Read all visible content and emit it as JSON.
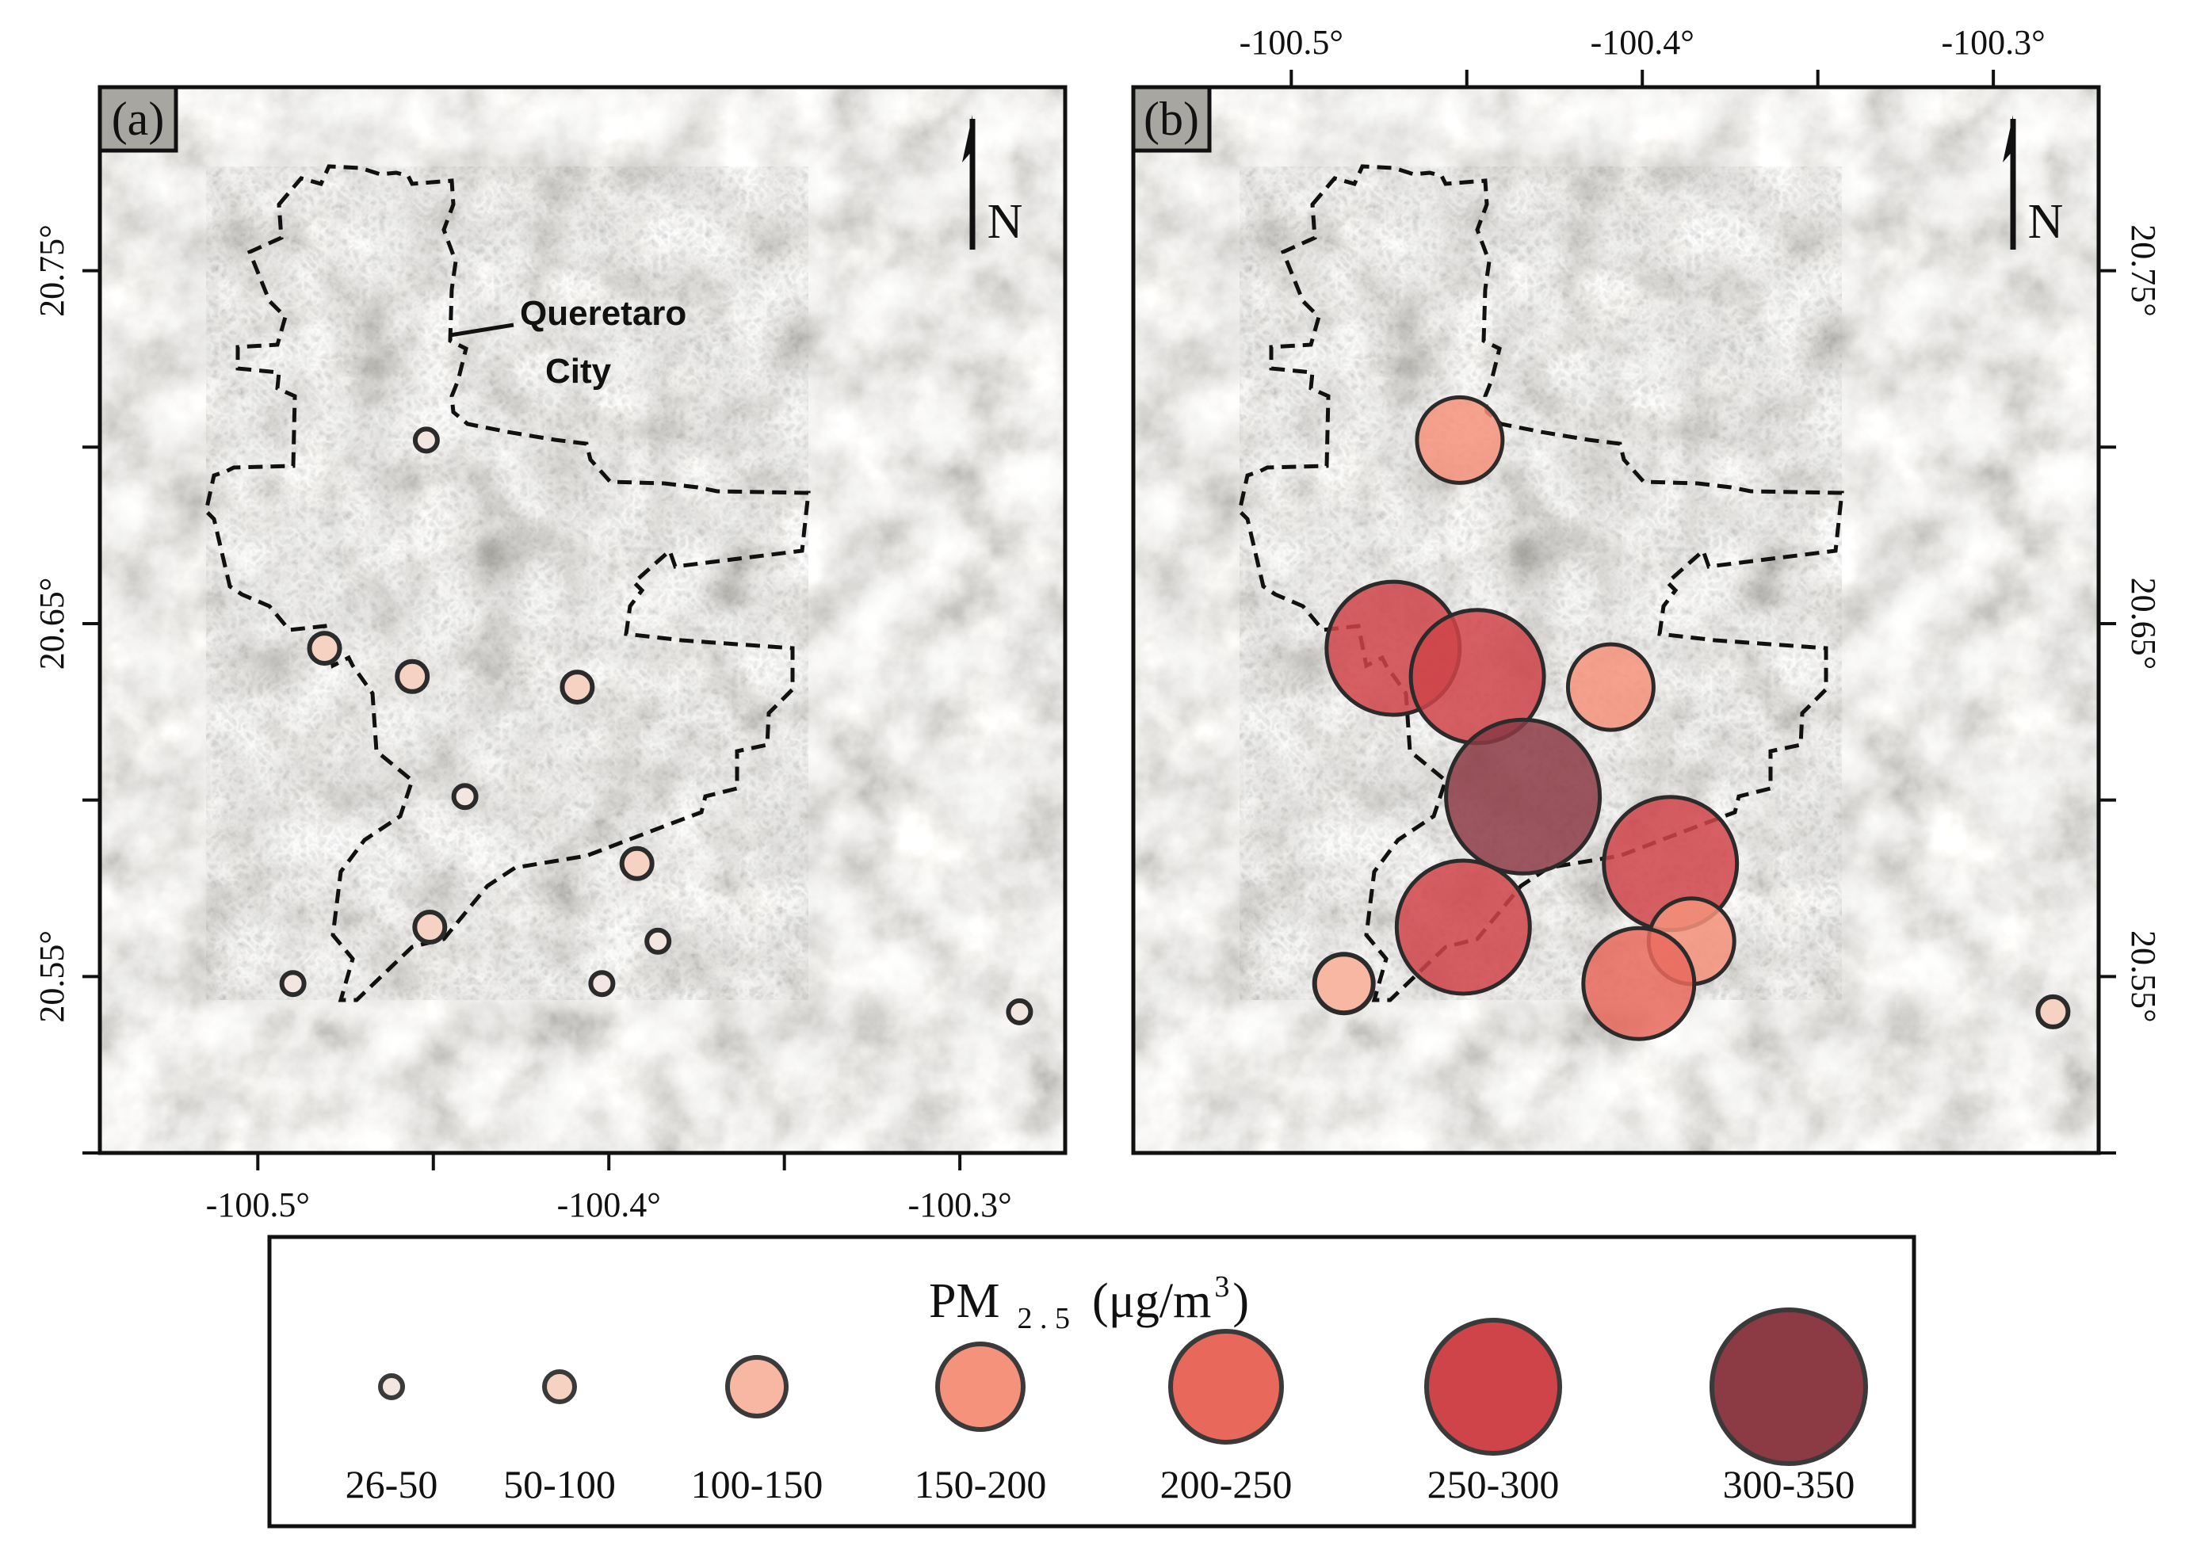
{
  "chart_data": {
    "type": "map",
    "panels": [
      {
        "label": "(a)",
        "city_label_line1": "Queretaro",
        "city_label_line2": "City",
        "north": "N",
        "stations": [
          {
            "lon": -100.452,
            "lat": 20.702,
            "cls": 0
          },
          {
            "lon": -100.481,
            "lat": 20.643,
            "cls": 1
          },
          {
            "lon": -100.456,
            "lat": 20.635,
            "cls": 1
          },
          {
            "lon": -100.409,
            "lat": 20.632,
            "cls": 1
          },
          {
            "lon": -100.441,
            "lat": 20.601,
            "cls": 0
          },
          {
            "lon": -100.392,
            "lat": 20.582,
            "cls": 1
          },
          {
            "lon": -100.451,
            "lat": 20.564,
            "cls": 1
          },
          {
            "lon": -100.386,
            "lat": 20.56,
            "cls": 0
          },
          {
            "lon": -100.49,
            "lat": 20.548,
            "cls": 0
          },
          {
            "lon": -100.402,
            "lat": 20.548,
            "cls": 0
          },
          {
            "lon": -100.283,
            "lat": 20.54,
            "cls": 0
          }
        ]
      },
      {
        "label": "(b)",
        "north": "N",
        "stations": [
          {
            "lon": -100.452,
            "lat": 20.702,
            "cls": 3
          },
          {
            "lon": -100.471,
            "lat": 20.643,
            "cls": 5
          },
          {
            "lon": -100.447,
            "lat": 20.635,
            "cls": 5
          },
          {
            "lon": -100.409,
            "lat": 20.632,
            "cls": 3
          },
          {
            "lon": -100.434,
            "lat": 20.601,
            "cls": 6
          },
          {
            "lon": -100.392,
            "lat": 20.582,
            "cls": 5
          },
          {
            "lon": -100.451,
            "lat": 20.564,
            "cls": 5
          },
          {
            "lon": -100.386,
            "lat": 20.56,
            "cls": 3
          },
          {
            "lon": -100.485,
            "lat": 20.548,
            "cls": 2
          },
          {
            "lon": -100.401,
            "lat": 20.548,
            "cls": 4
          },
          {
            "lon": -100.283,
            "lat": 20.54,
            "cls": 1
          }
        ]
      }
    ],
    "x_ticks": [
      "-100.5°",
      "-100.4°",
      "-100.3°"
    ],
    "y_ticks": [
      "20.75°",
      "20.65°",
      "20.55°"
    ],
    "lon_range": [
      -100.545,
      -100.27
    ],
    "lat_range": [
      20.5,
      20.802
    ],
    "legend": {
      "title_main": "PM",
      "title_sub": "2 . 5",
      "title_unit": "(μg/m",
      "title_sup": "3",
      "title_close": ")",
      "classes": [
        {
          "label": "26-50",
          "color": "#f3e6e0"
        },
        {
          "label": "50-100",
          "color": "#f6d2c3"
        },
        {
          "label": "100-150",
          "color": "#f7b7a2"
        },
        {
          "label": "150-200",
          "color": "#f4927b"
        },
        {
          "label": "200-250",
          "color": "#e8695c"
        },
        {
          "label": "250-300",
          "color": "#cf4449"
        },
        {
          "label": "300-350",
          "color": "#8c3a44"
        }
      ]
    }
  }
}
